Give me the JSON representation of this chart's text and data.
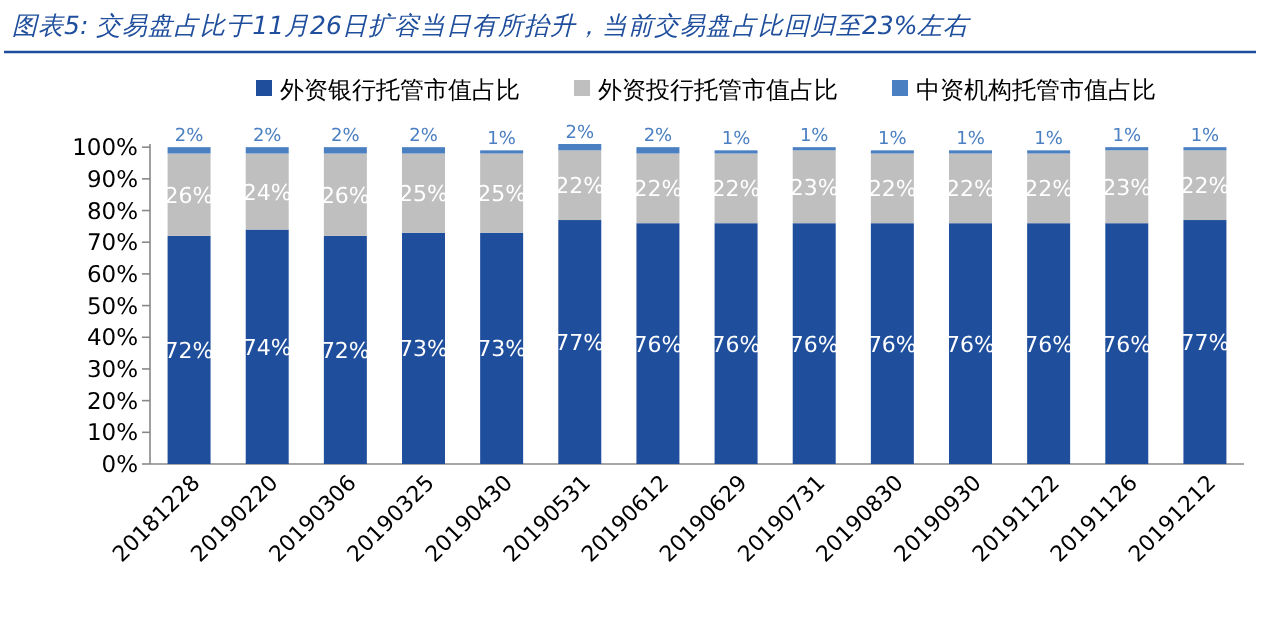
{
  "chart_data": {
    "type": "bar",
    "stacked": true,
    "title": "图表5: 交易盘占比于11月26日扩容当日有所抬升，当前交易盘占比回归至23%左右",
    "categories": [
      "20181228",
      "20190220",
      "20190306",
      "20190325",
      "20190430",
      "20190531",
      "20190612",
      "20190629",
      "20190731",
      "20190830",
      "20190930",
      "20191122",
      "20191126",
      "20191212"
    ],
    "series": [
      {
        "name": "外资银行托管市值占比",
        "color": "#1f4e9c",
        "values": [
          72,
          74,
          72,
          73,
          73,
          77,
          76,
          76,
          76,
          76,
          76,
          76,
          76,
          77
        ],
        "value_labels": [
          "72%",
          "74%",
          "72%",
          "73%",
          "73%",
          "77%",
          "76%",
          "76%",
          "76%",
          "76%",
          "76%",
          "76%",
          "76%",
          "77%"
        ]
      },
      {
        "name": "外资投行托管市值占比",
        "color": "#bfbfbf",
        "values": [
          26,
          24,
          26,
          25,
          25,
          22,
          22,
          22,
          23,
          22,
          22,
          22,
          23,
          22
        ],
        "value_labels": [
          "26%",
          "24%",
          "26%",
          "25%",
          "25%",
          "22%",
          "22%",
          "22%",
          "23%",
          "22%",
          "22%",
          "22%",
          "23%",
          "22%"
        ]
      },
      {
        "name": "中资机构托管市值占比",
        "color": "#4a7fc1",
        "values": [
          2,
          2,
          2,
          2,
          1,
          2,
          2,
          1,
          1,
          1,
          1,
          1,
          1,
          1
        ],
        "value_labels": [
          "2%",
          "2%",
          "2%",
          "2%",
          "1%",
          "2%",
          "2%",
          "1%",
          "1%",
          "1%",
          "1%",
          "1%",
          "1%",
          "1%"
        ]
      }
    ],
    "ylim": [
      0,
      101
    ],
    "yticks": [
      {
        "value": 0,
        "label": "0%"
      },
      {
        "value": 10,
        "label": "10%"
      },
      {
        "value": 20,
        "label": "20%"
      },
      {
        "value": 30,
        "label": "30%"
      },
      {
        "value": 40,
        "label": "40%"
      },
      {
        "value": 50,
        "label": "50%"
      },
      {
        "value": 60,
        "label": "60%"
      },
      {
        "value": 70,
        "label": "70%"
      },
      {
        "value": 80,
        "label": "80%"
      },
      {
        "value": 90,
        "label": "90%"
      },
      {
        "value": 100,
        "label": "100%"
      }
    ],
    "legend": "top"
  }
}
